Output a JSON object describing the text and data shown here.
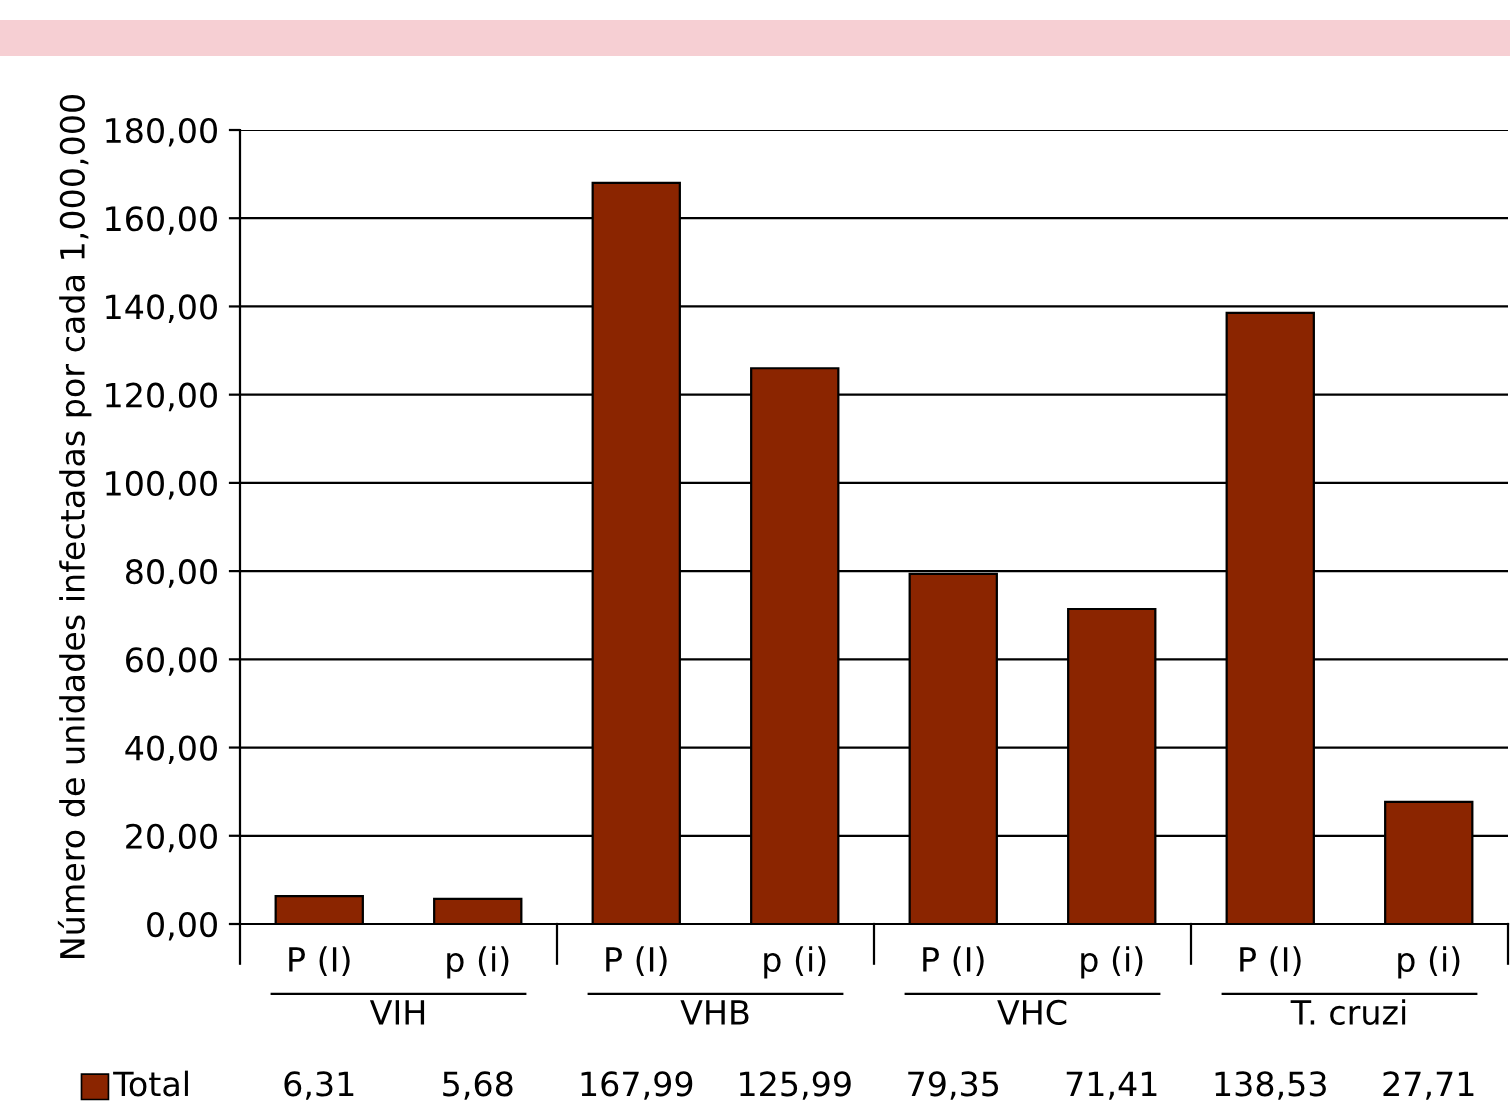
{
  "chart_data": {
    "type": "bar",
    "ylabel": "Número de unidades infectadas por cada 1,000,000",
    "categories": [
      "P (I)",
      "p (i)",
      "P (I)",
      "p (i)",
      "P (I)",
      "p (i)",
      "P (I)",
      "p (i)"
    ],
    "series": [
      {
        "name": "Total",
        "color": "#8b2500",
        "values": [
          6.31,
          5.68,
          167.99,
          125.99,
          79.35,
          71.41,
          138.53,
          27.71
        ],
        "value_labels": [
          "6,31",
          "5,68",
          "167,99",
          "125,99",
          "79,35",
          "71,41",
          "138,53",
          "27,71"
        ]
      }
    ],
    "annotations": [
      "VIH",
      "VHB",
      "VHC",
      "T. cruzi"
    ],
    "ylim": [
      0,
      180
    ],
    "yticks": [
      {
        "value": 0,
        "label": "0,00"
      },
      {
        "value": 20,
        "label": "20,00"
      },
      {
        "value": 40,
        "label": "40,00"
      },
      {
        "value": 60,
        "label": "60,00"
      },
      {
        "value": 80,
        "label": "80,00"
      },
      {
        "value": 100,
        "label": "100,00"
      },
      {
        "value": 120,
        "label": "120,00"
      },
      {
        "value": 140,
        "label": "140,00"
      },
      {
        "value": 160,
        "label": "160,00"
      },
      {
        "value": 180,
        "label": "180,00"
      }
    ],
    "grid": "y",
    "legend": "bottom"
  }
}
